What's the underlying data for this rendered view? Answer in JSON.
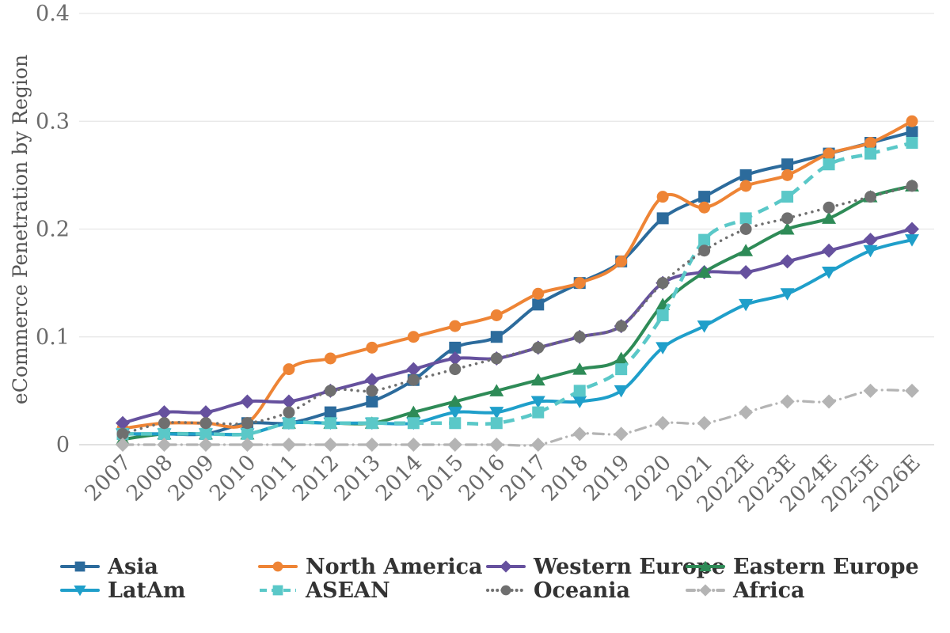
{
  "page": {
    "background": "#ffffff"
  },
  "axis_style": {
    "tick_label_color": "#6b6b6b",
    "axis_label_color": "#555555",
    "grid_color": "#e6e6e6",
    "zero_line_color": "#cfcfcf",
    "legend_text_color": "#333333"
  },
  "chart_data": {
    "type": "line",
    "title": "",
    "xlabel": "",
    "ylabel": "eCommerce Penetration by Region",
    "ylim": [
      0,
      0.4
    ],
    "yticks": [
      0,
      0.1,
      0.2,
      0.3,
      0.4
    ],
    "ytick_labels": [
      "0",
      "0.1",
      "0.2",
      "0.3",
      "0.4"
    ],
    "grid": "horizontal",
    "legend_position": "bottom",
    "x_tick_rotation_deg": 45,
    "categories": [
      "2007",
      "2008",
      "2009",
      "2010",
      "2011",
      "2012",
      "2013",
      "2014",
      "2015",
      "2016",
      "2017",
      "2018",
      "2019",
      "2020",
      "2021",
      "2022E",
      "2023E",
      "2024E",
      "2025E",
      "2026E"
    ],
    "series": [
      {
        "name": "Asia",
        "color": "#2c6b9c",
        "marker": "square",
        "line_style": "solid",
        "values": [
          0.01,
          0.01,
          0.01,
          0.02,
          0.02,
          0.03,
          0.04,
          0.06,
          0.09,
          0.1,
          0.13,
          0.15,
          0.17,
          0.21,
          0.23,
          0.25,
          0.26,
          0.27,
          0.28,
          0.29
        ]
      },
      {
        "name": "North America",
        "color": "#ee8435",
        "marker": "circle",
        "line_style": "solid",
        "values": [
          0.015,
          0.02,
          0.02,
          0.02,
          0.07,
          0.08,
          0.09,
          0.1,
          0.11,
          0.12,
          0.14,
          0.15,
          0.17,
          0.23,
          0.22,
          0.24,
          0.25,
          0.27,
          0.28,
          0.3
        ]
      },
      {
        "name": "Western Europe",
        "color": "#66519e",
        "marker": "diamond",
        "line_style": "solid",
        "values": [
          0.02,
          0.03,
          0.03,
          0.04,
          0.04,
          0.05,
          0.06,
          0.07,
          0.08,
          0.08,
          0.09,
          0.1,
          0.11,
          0.15,
          0.16,
          0.16,
          0.17,
          0.18,
          0.19,
          0.2
        ]
      },
      {
        "name": "Eastern Europe",
        "color": "#2e8b57",
        "marker": "triangle-up",
        "line_style": "solid",
        "values": [
          0.005,
          0.01,
          0.01,
          0.01,
          0.02,
          0.02,
          0.02,
          0.03,
          0.04,
          0.05,
          0.06,
          0.07,
          0.08,
          0.13,
          0.16,
          0.18,
          0.2,
          0.21,
          0.23,
          0.24
        ]
      },
      {
        "name": "LatAm",
        "color": "#1f9fca",
        "marker": "triangle-down",
        "line_style": "solid",
        "values": [
          0.01,
          0.01,
          0.01,
          0.01,
          0.02,
          0.02,
          0.02,
          0.02,
          0.03,
          0.03,
          0.04,
          0.04,
          0.05,
          0.09,
          0.11,
          0.13,
          0.14,
          0.16,
          0.18,
          0.19
        ]
      },
      {
        "name": "ASEAN",
        "color": "#5ac8c8",
        "marker": "square",
        "line_style": "dashed",
        "values": [
          0.01,
          0.01,
          0.01,
          0.01,
          0.02,
          0.02,
          0.02,
          0.02,
          0.02,
          0.02,
          0.03,
          0.05,
          0.07,
          0.12,
          0.19,
          0.21,
          0.23,
          0.26,
          0.27,
          0.28
        ]
      },
      {
        "name": "Oceania",
        "color": "#6f6f6f",
        "marker": "circle",
        "line_style": "dotted",
        "values": [
          0.01,
          0.02,
          0.02,
          0.02,
          0.03,
          0.05,
          0.05,
          0.06,
          0.07,
          0.08,
          0.09,
          0.1,
          0.11,
          0.15,
          0.18,
          0.2,
          0.21,
          0.22,
          0.23,
          0.24
        ]
      },
      {
        "name": "Africa",
        "color": "#b4b4b4",
        "marker": "diamond",
        "line_style": "dashdot",
        "values": [
          0.0,
          0.0,
          0.0,
          0.0,
          0.0,
          0.0,
          0.0,
          0.0,
          0.0,
          0.0,
          0.0,
          0.01,
          0.01,
          0.02,
          0.02,
          0.03,
          0.04,
          0.04,
          0.05,
          0.05
        ]
      }
    ]
  }
}
